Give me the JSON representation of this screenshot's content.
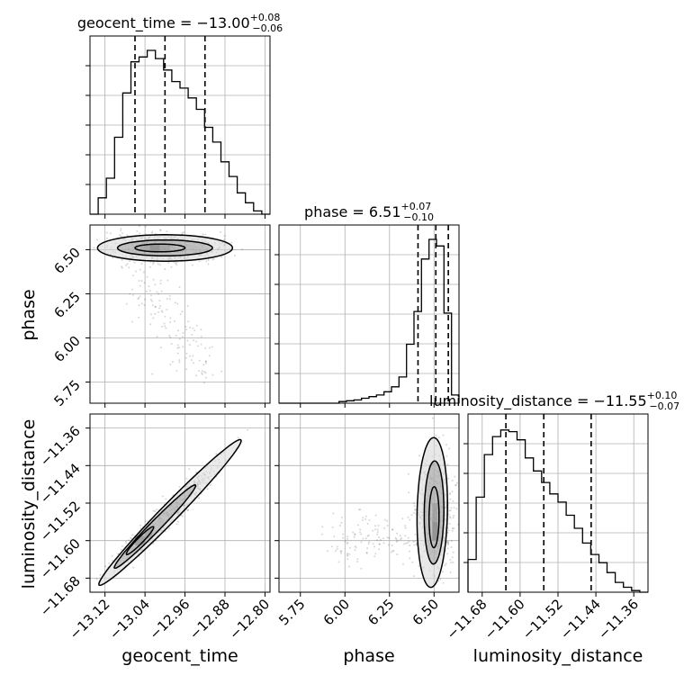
{
  "chart_data": {
    "type": "corner",
    "parameters": [
      "geocent_time",
      "phase",
      "luminosity_distance"
    ],
    "titles": [
      {
        "param": "geocent_time",
        "prefix": "geocent_time = ",
        "median": "−13.00",
        "plus": "+0.08",
        "minus": "−0.06"
      },
      {
        "param": "phase",
        "prefix": "phase = ",
        "median": "6.51",
        "plus": "+0.07",
        "minus": "−0.10"
      },
      {
        "param": "luminosity_distance",
        "prefix": "luminosity_distance = ",
        "median": "−11.55",
        "plus": "+0.10",
        "minus": "−0.07"
      }
    ],
    "ranges": {
      "geocent_time": [
        -13.15,
        -12.79
      ],
      "phase": [
        5.63,
        6.64
      ],
      "luminosity_distance": [
        -11.71,
        -11.33
      ]
    },
    "ticks": {
      "geocent_time": [
        {
          "v": -13.12,
          "label": "−13.12"
        },
        {
          "v": -13.04,
          "label": "−13.04"
        },
        {
          "v": -12.96,
          "label": "−12.96"
        },
        {
          "v": -12.88,
          "label": "−12.88"
        },
        {
          "v": -12.8,
          "label": "−12.80"
        }
      ],
      "phase": [
        {
          "v": 5.75,
          "label": "5.75"
        },
        {
          "v": 6.0,
          "label": "6.00"
        },
        {
          "v": 6.25,
          "label": "6.25"
        },
        {
          "v": 6.5,
          "label": "6.50"
        }
      ],
      "luminosity_distance": [
        {
          "v": -11.68,
          "label": "−11.68"
        },
        {
          "v": -11.6,
          "label": "−11.60"
        },
        {
          "v": -11.52,
          "label": "−11.52"
        },
        {
          "v": -11.44,
          "label": "−11.44"
        },
        {
          "v": -11.36,
          "label": "−11.36"
        }
      ]
    },
    "hist": {
      "geocent_time": {
        "quantiles": [
          -13.06,
          -13.0,
          -12.92
        ],
        "counts": [
          0,
          0.1,
          0.22,
          0.47,
          0.74,
          0.93,
          0.96,
          1.0,
          0.95,
          0.88,
          0.81,
          0.77,
          0.71,
          0.64,
          0.53,
          0.44,
          0.32,
          0.23,
          0.13,
          0.07,
          0.02,
          0
        ]
      },
      "phase": {
        "quantiles": [
          6.41,
          6.51,
          6.58
        ],
        "counts": [
          0,
          0,
          0,
          0,
          0,
          0,
          0,
          0,
          0.01,
          0.015,
          0.02,
          0.03,
          0.04,
          0.05,
          0.07,
          0.1,
          0.16,
          0.36,
          0.56,
          0.88,
          1.0,
          0.96,
          0.55,
          0.05
        ]
      },
      "luminosity_distance": {
        "quantiles": [
          -11.63,
          -11.55,
          -11.45
        ],
        "counts": [
          0.2,
          0.58,
          0.84,
          0.95,
          0.99,
          0.98,
          0.93,
          0.82,
          0.74,
          0.67,
          0.6,
          0.55,
          0.47,
          0.39,
          0.3,
          0.23,
          0.18,
          0.12,
          0.06,
          0.03,
          0.01,
          0
        ]
      }
    },
    "grid": true,
    "legend": "none"
  }
}
